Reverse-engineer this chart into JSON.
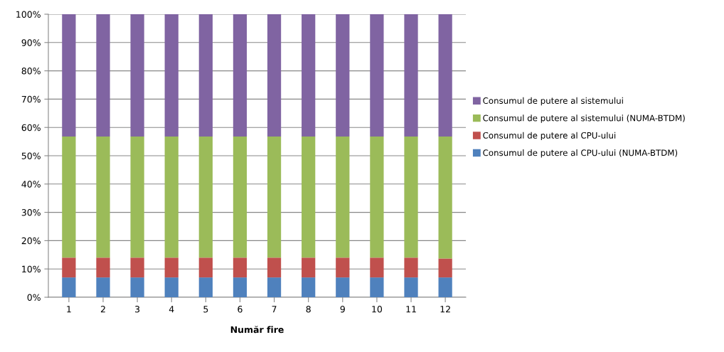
{
  "chart_data": {
    "type": "bar",
    "stacked": true,
    "xlabel": "Număr fire",
    "categories": [
      "1",
      "2",
      "3",
      "4",
      "5",
      "6",
      "7",
      "8",
      "9",
      "10",
      "11",
      "12"
    ],
    "series": [
      {
        "name": "Consumul de putere al CPU-ului (NUMA-BTDM)",
        "color": "#4f81bd",
        "values": [
          7,
          7,
          7,
          7,
          7,
          7,
          7,
          7,
          7,
          7,
          7,
          7
        ]
      },
      {
        "name": "Consumul de putere al CPU-ului",
        "color": "#c0504d",
        "values": [
          7,
          7,
          7,
          7,
          7,
          7,
          7,
          7,
          7,
          7,
          7,
          6.7
        ]
      },
      {
        "name": "Consumul de putere al sistemului (NUMA-BTDM)",
        "color": "#9bbb59",
        "values": [
          42.8,
          42.8,
          42.8,
          42.8,
          42.8,
          42.8,
          42.8,
          42.8,
          42.8,
          42.8,
          42.8,
          43.1
        ]
      },
      {
        "name": "Consumul de putere al sistemului",
        "color": "#8064a2",
        "values": [
          43.2,
          43.2,
          43.2,
          43.2,
          43.2,
          43.2,
          43.2,
          43.2,
          43.2,
          43.2,
          43.2,
          43.2
        ]
      }
    ],
    "ylim": [
      0,
      100
    ],
    "yticks": [
      {
        "value": 0,
        "label": "0%"
      },
      {
        "value": 10,
        "label": "10%"
      },
      {
        "value": 20,
        "label": "20%"
      },
      {
        "value": 30,
        "label": "30%"
      },
      {
        "value": 40,
        "label": "40%"
      },
      {
        "value": 50,
        "label": "50%"
      },
      {
        "value": 60,
        "label": "60%"
      },
      {
        "value": 70,
        "label": "70%"
      },
      {
        "value": 80,
        "label": "80%"
      },
      {
        "value": 90,
        "label": "90%"
      },
      {
        "value": 100,
        "label": "100%"
      }
    ],
    "grid": "y",
    "legend": "right"
  }
}
